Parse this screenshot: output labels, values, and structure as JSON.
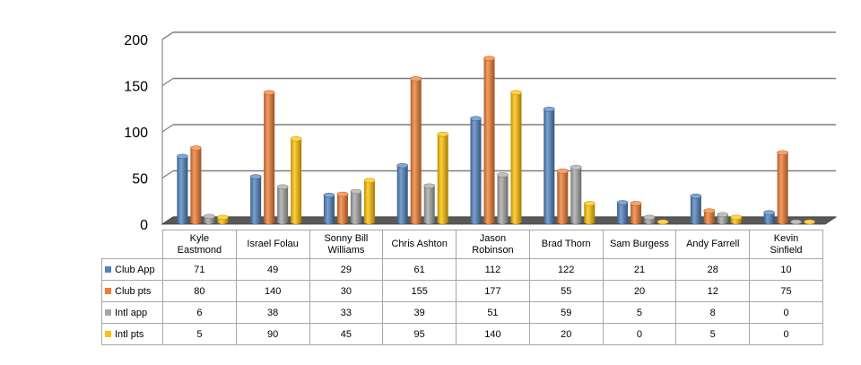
{
  "chart_data": {
    "type": "bar",
    "title": "",
    "xlabel": "",
    "ylabel": "",
    "ylim": [
      0,
      200
    ],
    "yticks": [
      0,
      50,
      100,
      150,
      200
    ],
    "grid": true,
    "legend_placement": "data-table",
    "categories": [
      "Kyle Eastmond",
      "Israel Folau",
      "Sonny Bill Williams",
      "Chris Ashton",
      "Jason Robinson",
      "Brad Thorn",
      "Sam Burgess",
      "Andy Farrell",
      "Kevin Sinfield"
    ],
    "series": [
      {
        "name": "Club App",
        "color": "#4f81bd",
        "values": [
          71,
          49,
          29,
          61,
          112,
          122,
          21,
          28,
          10
        ]
      },
      {
        "name": "Club pts",
        "color": "#f07c30",
        "values": [
          80,
          140,
          30,
          155,
          177,
          55,
          20,
          12,
          75
        ]
      },
      {
        "name": "Intl app",
        "color": "#a5a5a5",
        "values": [
          6,
          38,
          33,
          39,
          51,
          59,
          5,
          8,
          0
        ]
      },
      {
        "name": "Intl pts",
        "color": "#ffc000",
        "values": [
          5,
          90,
          45,
          95,
          140,
          20,
          0,
          5,
          0
        ]
      }
    ]
  },
  "category_lines": [
    [
      "Kyle",
      "Eastmond"
    ],
    [
      "Israel Folau"
    ],
    [
      "Sonny Bill",
      "Williams"
    ],
    [
      "Chris Ashton"
    ],
    [
      "Jason",
      "Robinson"
    ],
    [
      "Brad Thorn"
    ],
    [
      "Sam Burgess"
    ],
    [
      "Andy Farrell"
    ],
    [
      "Kevin",
      "Sinfield"
    ]
  ]
}
